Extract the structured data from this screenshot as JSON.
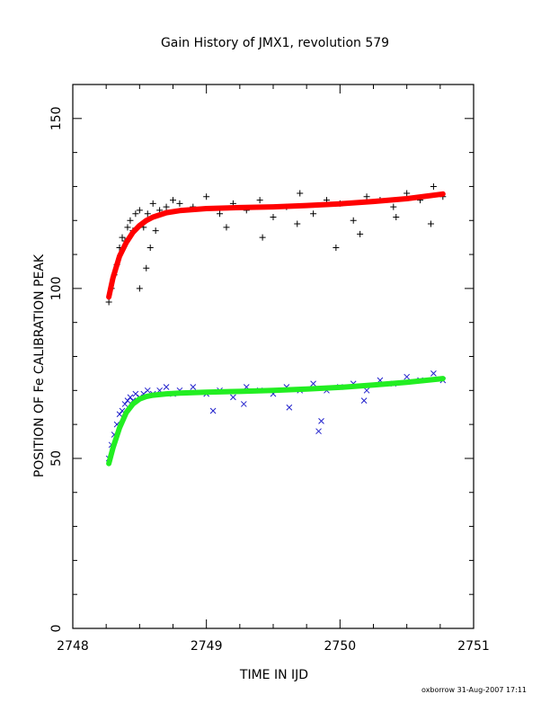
{
  "chart_data": {
    "type": "scatter",
    "title": "Gain History of JMX1, revolution 579",
    "xlabel": "TIME IN IJD",
    "ylabel": "POSITION OF Fe CALIBRATION PEAK",
    "footer": "oxborrow 31-Aug-2007 17:11",
    "xlim": [
      2748,
      2751
    ],
    "ylim": [
      0,
      160
    ],
    "x_ticks": [
      2748,
      2749,
      2750,
      2751
    ],
    "x_tick_labels": [
      "2748",
      "2749",
      "2750",
      "2751"
    ],
    "y_ticks": [
      0,
      50,
      100,
      150
    ],
    "y_tick_labels": [
      "0",
      "50",
      "100",
      "150"
    ],
    "grid": false,
    "legend": "none",
    "series": [
      {
        "marker": "plus",
        "color": "#000000",
        "x": [
          2748.27,
          2748.29,
          2748.31,
          2748.33,
          2748.35,
          2748.37,
          2748.39,
          2748.41,
          2748.43,
          2748.45,
          2748.47,
          2748.5,
          2748.53,
          2748.56,
          2748.6,
          2748.65,
          2748.7,
          2748.75,
          2748.8,
          2748.9,
          2749.0,
          2749.1,
          2749.2,
          2749.3,
          2749.4,
          2749.5,
          2749.6,
          2749.7,
          2749.8,
          2749.9,
          2750.0,
          2750.1,
          2750.2,
          2750.3,
          2750.4,
          2750.5,
          2750.6,
          2750.7,
          2750.77,
          2748.5,
          2748.55,
          2748.58,
          2748.62,
          2749.15,
          2749.42,
          2749.68,
          2749.97,
          2750.15,
          2750.42,
          2750.68
        ],
        "y": [
          96,
          100,
          104,
          107,
          112,
          115,
          114,
          118,
          120,
          117,
          122,
          123,
          118,
          122,
          125,
          123,
          124,
          126,
          125,
          124,
          127,
          122,
          125,
          123,
          126,
          121,
          124,
          128,
          122,
          126,
          125,
          120,
          127,
          126,
          124,
          128,
          126,
          130,
          127,
          100,
          106,
          112,
          117,
          118,
          115,
          119,
          112,
          116,
          121,
          119
        ]
      },
      {
        "marker": "cross",
        "color": "#2222cc",
        "x": [
          2748.27,
          2748.29,
          2748.31,
          2748.33,
          2748.35,
          2748.37,
          2748.39,
          2748.41,
          2748.43,
          2748.45,
          2748.47,
          2748.5,
          2748.53,
          2748.56,
          2748.6,
          2748.65,
          2748.7,
          2748.75,
          2748.8,
          2748.9,
          2749.0,
          2749.1,
          2749.2,
          2749.3,
          2749.4,
          2749.5,
          2749.6,
          2749.7,
          2749.8,
          2749.9,
          2750.0,
          2750.1,
          2750.2,
          2750.3,
          2750.4,
          2750.5,
          2750.6,
          2750.7,
          2750.77,
          2749.05,
          2749.28,
          2749.62,
          2749.84,
          2749.86,
          2750.18
        ],
        "y": [
          50,
          54,
          57,
          60,
          63,
          64,
          66,
          67,
          68,
          67,
          69,
          68,
          69,
          70,
          69,
          70,
          71,
          69,
          70,
          71,
          69,
          70,
          68,
          71,
          70,
          69,
          71,
          70,
          72,
          70,
          71,
          72,
          70,
          73,
          72,
          74,
          73,
          75,
          73,
          64,
          66,
          65,
          58,
          61,
          67
        ]
      },
      {
        "name": "",
        "style": "line",
        "color": "#ff0000",
        "x": [
          2748.27,
          2748.3,
          2748.35,
          2748.4,
          2748.45,
          2748.5,
          2748.55,
          2748.6,
          2748.7,
          2748.8,
          2749.0,
          2749.25,
          2749.5,
          2749.75,
          2750.0,
          2750.25,
          2750.5,
          2750.77
        ],
        "y": [
          97.5,
          103,
          109.5,
          113.5,
          116.5,
          118.5,
          120,
          121,
          122.3,
          122.9,
          123.5,
          123.8,
          124.0,
          124.4,
          124.9,
          125.6,
          126.4,
          127.8
        ]
      },
      {
        "name": "",
        "style": "line",
        "color": "#22ee22",
        "x": [
          2748.27,
          2748.3,
          2748.35,
          2748.4,
          2748.45,
          2748.5,
          2748.55,
          2748.6,
          2748.7,
          2748.8,
          2749.0,
          2749.25,
          2749.5,
          2749.75,
          2750.0,
          2750.25,
          2750.5,
          2750.77
        ],
        "y": [
          48.5,
          53,
          59,
          63.5,
          66,
          67.5,
          68.2,
          68.6,
          69.0,
          69.2,
          69.5,
          69.7,
          70.0,
          70.4,
          70.9,
          71.6,
          72.4,
          73.5
        ]
      }
    ]
  }
}
